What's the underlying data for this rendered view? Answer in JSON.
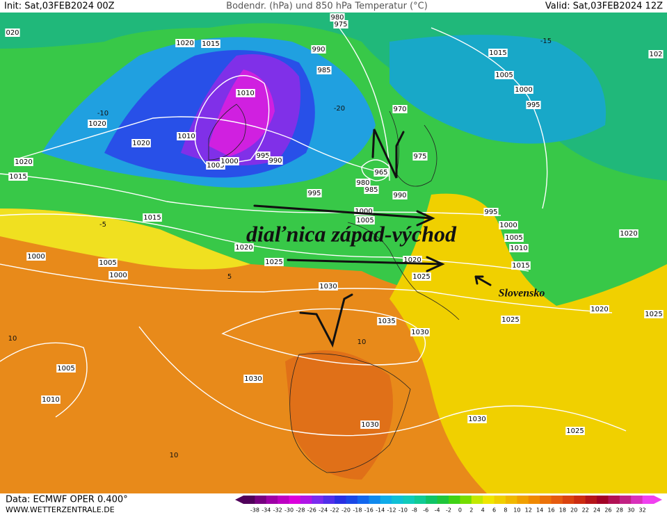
{
  "header": {
    "init": "Init: Sat,03FEB2024 00Z",
    "title": "Bodendr. (hPa) und 850 hPa Temperatur (°C)",
    "valid": "Valid: Sat,03FEB2024 12Z"
  },
  "footer": {
    "data": "Data: ECMWF OPER 0.400°",
    "site": "WWW.WETTERZENTRALE.DE"
  },
  "annotations": {
    "highway": "diaľnica západ-východ",
    "country": "Slovensko"
  },
  "map_labels": [
    "020",
    "1020",
    "1015",
    "980",
    "975",
    "990",
    "985",
    "1015",
    "102",
    "1005",
    "1000",
    "995",
    "970",
    "1010",
    "1020",
    "1010",
    "1020",
    "1005",
    "1000",
    "995",
    "990",
    "965",
    "975",
    "980",
    "985",
    "990",
    "995",
    "1020",
    "1015",
    "1015",
    "995",
    "1000",
    "1005",
    "1000",
    "1005",
    "1010",
    "1015",
    "1020",
    "1020",
    "1025",
    "1000",
    "1005",
    "1000",
    "1030",
    "1025",
    "1035",
    "1030",
    "1025",
    "1020",
    "1025",
    "1005",
    "1010",
    "1030",
    "1030",
    "1030",
    "1025",
    "1020",
    "-10",
    "10",
    "10",
    "10",
    "-15",
    "-20",
    "5",
    "-5"
  ],
  "colorbar": {
    "labels": [
      -38,
      -34,
      -32,
      -30,
      -28,
      -26,
      -24,
      -22,
      -20,
      -18,
      -16,
      -14,
      -12,
      -10,
      -8,
      -6,
      -4,
      -2,
      0,
      2,
      4,
      6,
      8,
      10,
      12,
      14,
      16,
      18,
      20,
      22,
      24,
      26,
      28,
      30,
      32
    ]
  }
}
